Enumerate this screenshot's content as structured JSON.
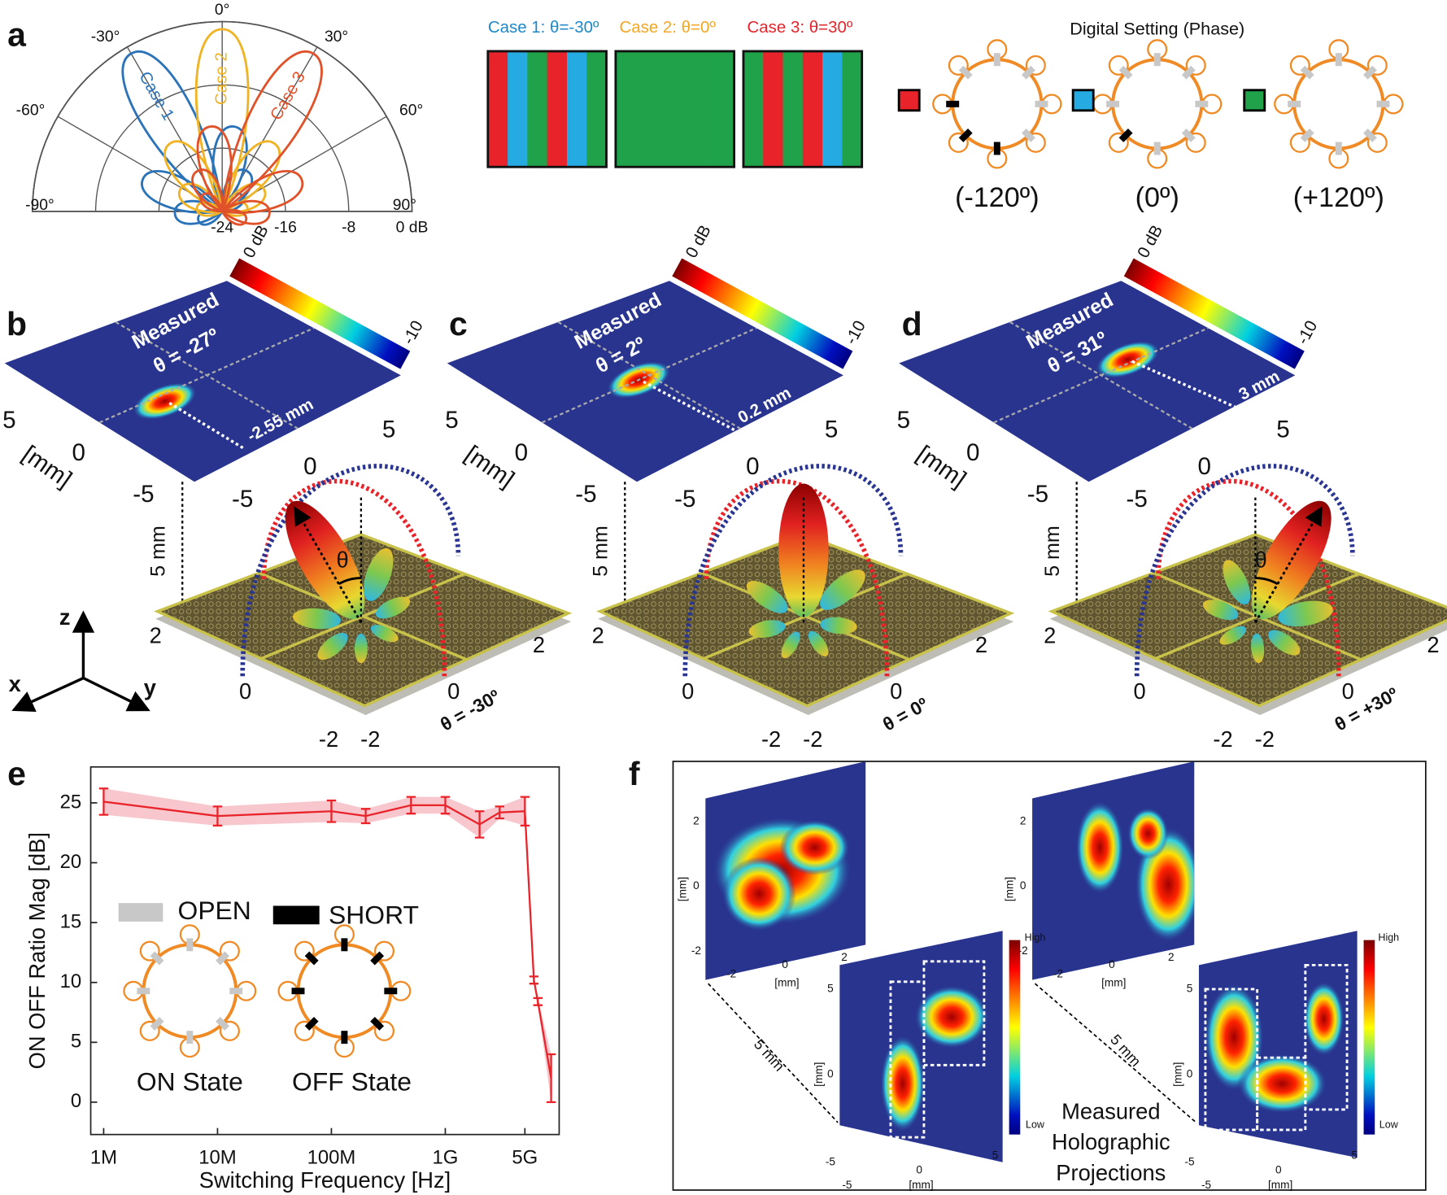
{
  "panel_labels": [
    "a",
    "b",
    "c",
    "d",
    "e",
    "f"
  ],
  "polar": {
    "type": "polar",
    "angle_ticks": [
      {
        "value": -90,
        "label": "-90°"
      },
      {
        "value": -60,
        "label": "-60°"
      },
      {
        "value": -30,
        "label": "-30°"
      },
      {
        "value": 0,
        "label": "0°"
      },
      {
        "value": 30,
        "label": "30°"
      },
      {
        "value": 60,
        "label": "60°"
      },
      {
        "value": 90,
        "label": "90°"
      }
    ],
    "rlim": [
      -24,
      0
    ],
    "rticks": [
      -24,
      -16,
      -8,
      {
        "value": 0,
        "label": "0 dB"
      }
    ],
    "series": [
      {
        "name": "Case 1",
        "color": "#2a73b8",
        "angle": -30
      },
      {
        "name": "Case 2",
        "color": "#f0b323",
        "angle": 0
      },
      {
        "name": "Case 3",
        "color": "#e0522a",
        "angle": 30
      }
    ]
  },
  "cases": [
    {
      "title": "Case 1: θ=-30º",
      "color": "#1e88c9"
    },
    {
      "title": "Case 2: θ=0º",
      "color": "#f5a623"
    },
    {
      "title": "Case 3: θ=30º",
      "color": "#e3262b"
    }
  ],
  "digital": {
    "title": "Digital Setting (Phase)",
    "states": [
      {
        "label": "(-120º)",
        "color": "#e8242a"
      },
      {
        "label": "(0º)",
        "color": "#25aae1"
      },
      {
        "label": "(+120º)",
        "color": "#1fa24a"
      }
    ]
  },
  "views": [
    {
      "measured": "Measured",
      "theta_measured": "θ =  -27º",
      "cbar_max": "0 dB",
      "cbar_min": "-10",
      "offset": "-2.55 mm",
      "theta_set": "θ = -30º",
      "angle": -30
    },
    {
      "measured": "Measured",
      "theta_measured": "θ =  2º",
      "cbar_max": "0 dB",
      "cbar_min": "-10",
      "offset": "0.2 mm",
      "theta_set": "θ = 0º",
      "angle": 0
    },
    {
      "measured": "Measured",
      "theta_measured": "θ =  31º",
      "cbar_max": "0 dB",
      "cbar_min": "-10",
      "offset": "3 mm",
      "theta_set": "θ = +30º",
      "angle": 30
    }
  ],
  "view_axes": {
    "map_ticks": [
      5,
      0,
      -5
    ],
    "map_unit": "[mm]",
    "plate_ticks": [
      2,
      0,
      -2
    ],
    "height": "5 mm",
    "theta": "θ"
  },
  "triad": [
    "z",
    "x",
    "y"
  ],
  "chart_data": {
    "type": "line",
    "xlabel": "Switching Frequency [Hz]",
    "ylabel": "ON OFF Ratio Mag [dB]",
    "log_x": true,
    "x": [
      1000000,
      10000000,
      100000000,
      200000000,
      500000000,
      1000000000,
      2000000000,
      3000000000,
      5000000000,
      6000000000,
      6500000000,
      8500000000
    ],
    "series": [
      {
        "color": "#e8242a",
        "band_color": "#f6b8c0",
        "values": [
          25.1,
          23.9,
          24.3,
          23.9,
          24.8,
          24.8,
          23.2,
          24.2,
          24.3,
          10.2,
          8.4,
          2.0
        ],
        "errors": [
          1.1,
          0.8,
          0.9,
          0.6,
          0.7,
          0.7,
          1.1,
          0.5,
          1.2,
          0.3,
          0.3,
          2.0
        ]
      }
    ],
    "xlim": [
      770000,
      10000000000
    ],
    "xticks": [
      {
        "value": 1000000,
        "label": "1M"
      },
      {
        "value": 10000000,
        "label": "10M"
      },
      {
        "value": 100000000,
        "label": "100M"
      },
      {
        "value": 1000000000,
        "label": "1G"
      },
      {
        "value": 5000000000,
        "label": "5G"
      }
    ],
    "ylim": [
      -2.7,
      28
    ],
    "yticks": [
      0,
      5,
      10,
      15,
      20,
      25
    ],
    "inset": {
      "open": "OPEN",
      "short": "SHORT",
      "on": "ON State",
      "off": "OFF State"
    }
  },
  "holo": {
    "top_ticks": [
      2,
      0,
      -2
    ],
    "bottom_ticks": [
      5,
      0,
      -5
    ],
    "unit": "[mm]",
    "depth": "5 mm",
    "high": "High",
    "low": "Low",
    "caption": [
      "Measured",
      "Holographic",
      "Projections"
    ]
  }
}
